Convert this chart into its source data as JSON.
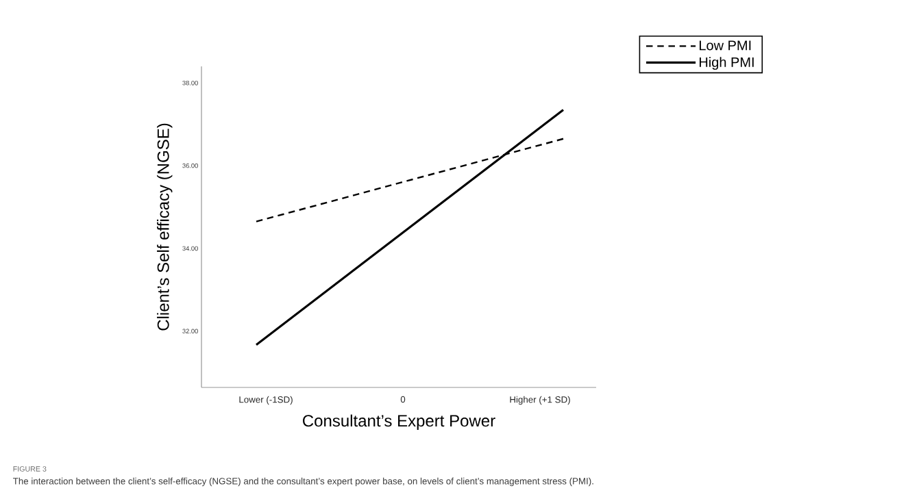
{
  "chart_data": {
    "type": "line",
    "xlabel": "Consultant’s Expert Power",
    "ylabel": "Client’s Self efficacy (NGSE)",
    "x": [
      -1.07,
      1.17
    ],
    "series": [
      {
        "name": "Low PMI",
        "color": "#000000",
        "line_style": "dashed",
        "values": [
          34.65,
          36.65
        ]
      },
      {
        "name": "High PMI",
        "color": "#000000",
        "line_style": "solid",
        "values": [
          31.67,
          37.35
        ]
      }
    ],
    "xlim": [
      -1.47,
      1.41
    ],
    "xticks": [
      {
        "value": -1,
        "label": "Lower (-1SD)"
      },
      {
        "value": 0,
        "label": "0"
      },
      {
        "value": 1,
        "label": "Higher (+1 SD)"
      }
    ],
    "ylim": [
      30.64,
      38.4
    ],
    "yticks": [
      {
        "value": 32,
        "label": "32.00"
      },
      {
        "value": 34,
        "label": "34.00"
      },
      {
        "value": 36,
        "label": "36.00"
      },
      {
        "value": 38,
        "label": "38.00"
      }
    ],
    "legend": "top right",
    "annotations": [
      "FIGURE 3",
      "The interaction between the client’s self-efficacy (NGSE) and the consultant’s expert power base, on levels of client’s management stress (PMI)."
    ]
  }
}
